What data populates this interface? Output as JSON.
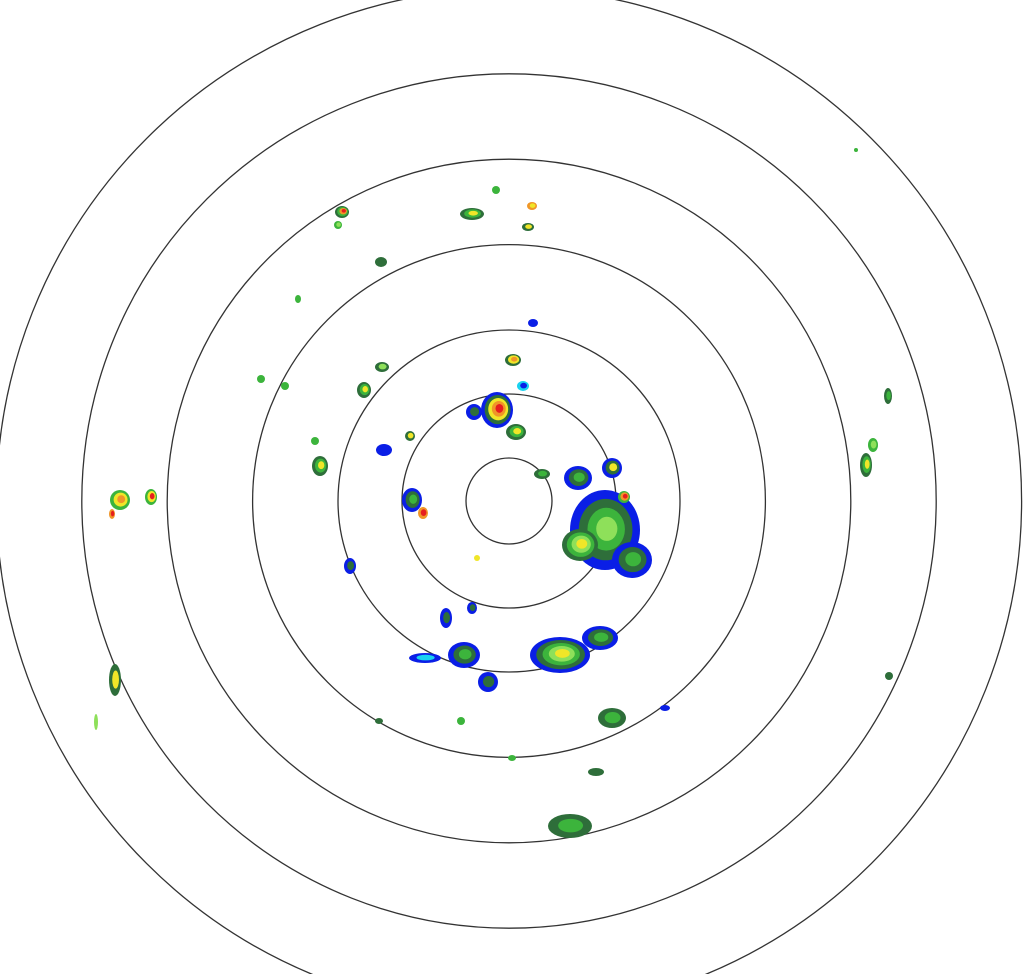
{
  "radar": {
    "range_ring_count": 7,
    "colors": {
      "background": "#ffffff",
      "range_ring": "#333333",
      "weak_blue": "#0a1ee6",
      "light_cyan": "#19d2f0",
      "dark_green": "#2e6e3a",
      "green": "#3cb43c",
      "light_green": "#8ee05a",
      "yellow": "#f0e628",
      "orange": "#f09628",
      "red": "#e61e1e"
    }
  }
}
